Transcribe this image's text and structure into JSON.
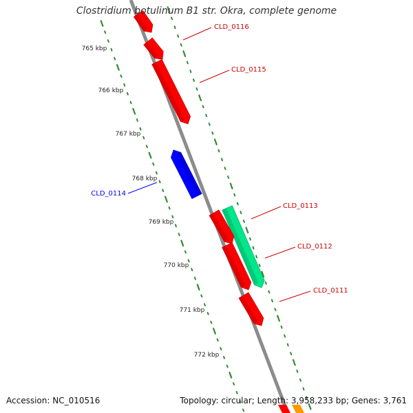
{
  "title": "Clostridium botulinum B1 str. Okra, complete genome",
  "accession": "Accession: NC_010516",
  "topology": "Topology: circular; Length: 3,958,233 bp; Genes: 3,761",
  "colors": {
    "backbone": "#8c8c8c",
    "kbp_dots": "#2e8b2e",
    "forward_gene": "#ff0000",
    "reverse_gene": "#0000ff",
    "rna_gene": "#00e68a",
    "other_gene": "#ff9900"
  },
  "kbp_labels": [
    "765 kbp",
    "766 kbp",
    "767 kbp",
    "768 kbp",
    "769 kbp",
    "770 kbp",
    "771 kbp",
    "772 kbp"
  ],
  "genes": [
    {
      "label": "CLD_0116",
      "strand": "forward",
      "color": "#ff0000"
    },
    {
      "label": "CLD_0115",
      "strand": "forward",
      "color": "#ff0000"
    },
    {
      "label": "CLD_0114",
      "strand": "reverse",
      "color": "#0000ff"
    },
    {
      "label": "CLD_0113",
      "strand": "forward",
      "color": "#00e68a"
    },
    {
      "label": "CLD_0112",
      "strand": "forward",
      "color": "#ff0000"
    },
    {
      "label": "CLD_0111",
      "strand": "forward",
      "color": "#ff0000"
    }
  ]
}
